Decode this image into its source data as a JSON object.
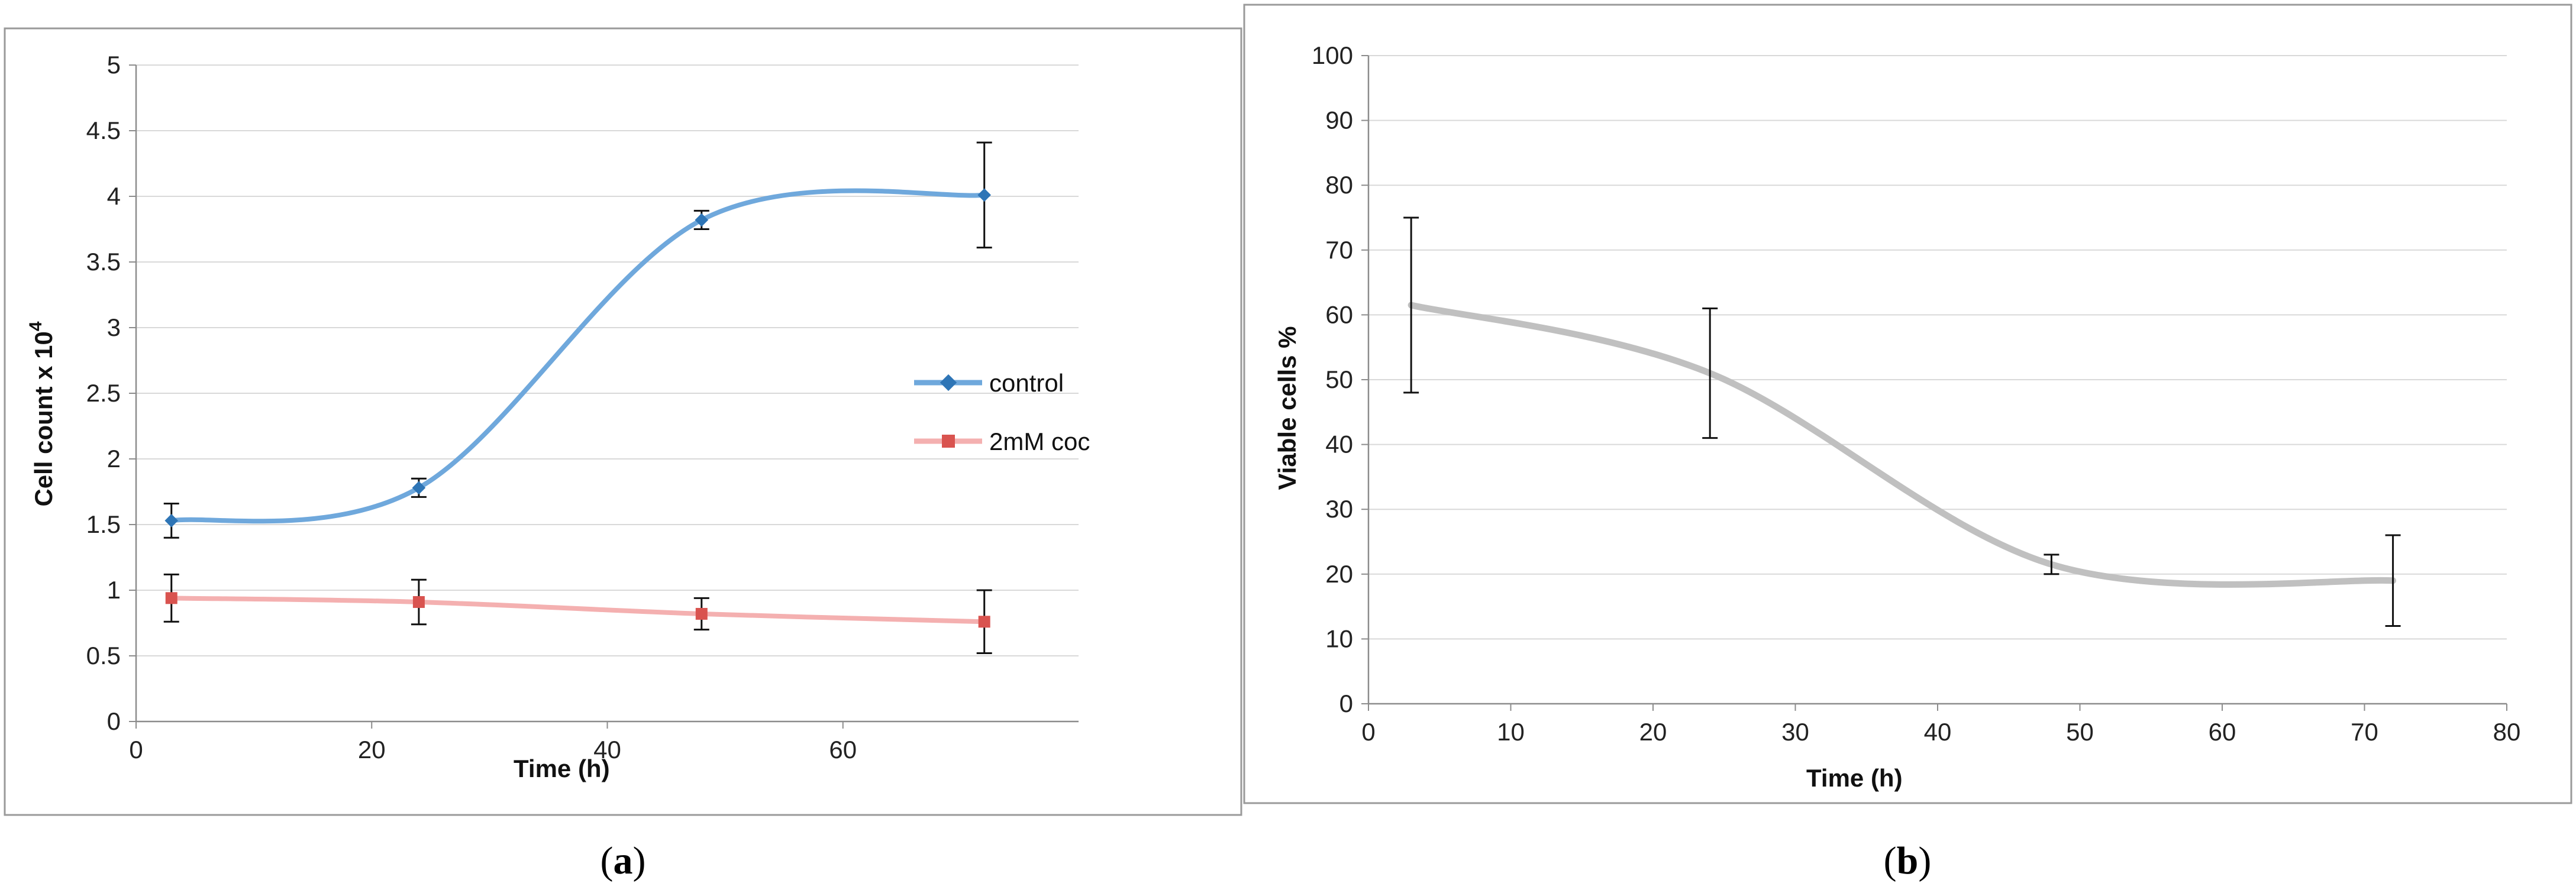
{
  "chart_data": [
    {
      "panel": "a",
      "type": "line",
      "title": "",
      "xlabel": "Time (h)",
      "ylabel": "Cell count x 10",
      "ylabel_superscript": "4",
      "xlim": [
        0,
        80
      ],
      "ylim": [
        0,
        5
      ],
      "xticks": [
        "0",
        "20",
        "40",
        "60"
      ],
      "yticks": [
        "0",
        "0.5",
        "1",
        "1.5",
        "2",
        "2.5",
        "3",
        "3.5",
        "4",
        "4.5",
        "5"
      ],
      "grid": "horizontal",
      "legend_position": "right",
      "series": [
        {
          "name": "control",
          "color": "#6fa8dc",
          "marker_color": "#2e75b6",
          "x": [
            3,
            24,
            48,
            72
          ],
          "y": [
            1.53,
            1.78,
            3.82,
            4.01
          ],
          "err": [
            0.13,
            0.07,
            0.07,
            0.4
          ]
        },
        {
          "name": "2mM coc",
          "color": "#f4b0b0",
          "marker_color": "#d9534f",
          "x": [
            3,
            24,
            48,
            72
          ],
          "y": [
            0.94,
            0.91,
            0.82,
            0.76
          ],
          "err": [
            0.18,
            0.17,
            0.12,
            0.24
          ]
        }
      ]
    },
    {
      "panel": "b",
      "type": "line",
      "title": "",
      "xlabel": "Time (h)",
      "ylabel": "Viable cells %",
      "xlim": [
        0,
        80
      ],
      "ylim": [
        0,
        100
      ],
      "xticks": [
        "0",
        "10",
        "20",
        "30",
        "40",
        "50",
        "60",
        "70",
        "80"
      ],
      "yticks": [
        "0",
        "10",
        "20",
        "30",
        "40",
        "50",
        "60",
        "70",
        "80",
        "90",
        "100"
      ],
      "grid": "horizontal",
      "series": [
        {
          "name": "viable cells",
          "color": "#c0c0c0",
          "x": [
            3,
            24,
            48,
            72
          ],
          "y": [
            61.5,
            51,
            21.5,
            19
          ],
          "err": [
            13.5,
            10,
            1.5,
            7
          ]
        }
      ]
    }
  ],
  "captions": {
    "a": {
      "open": "(",
      "letter": "a",
      "close": ")"
    },
    "b": {
      "open": "(",
      "letter": "b",
      "close": ")"
    }
  }
}
